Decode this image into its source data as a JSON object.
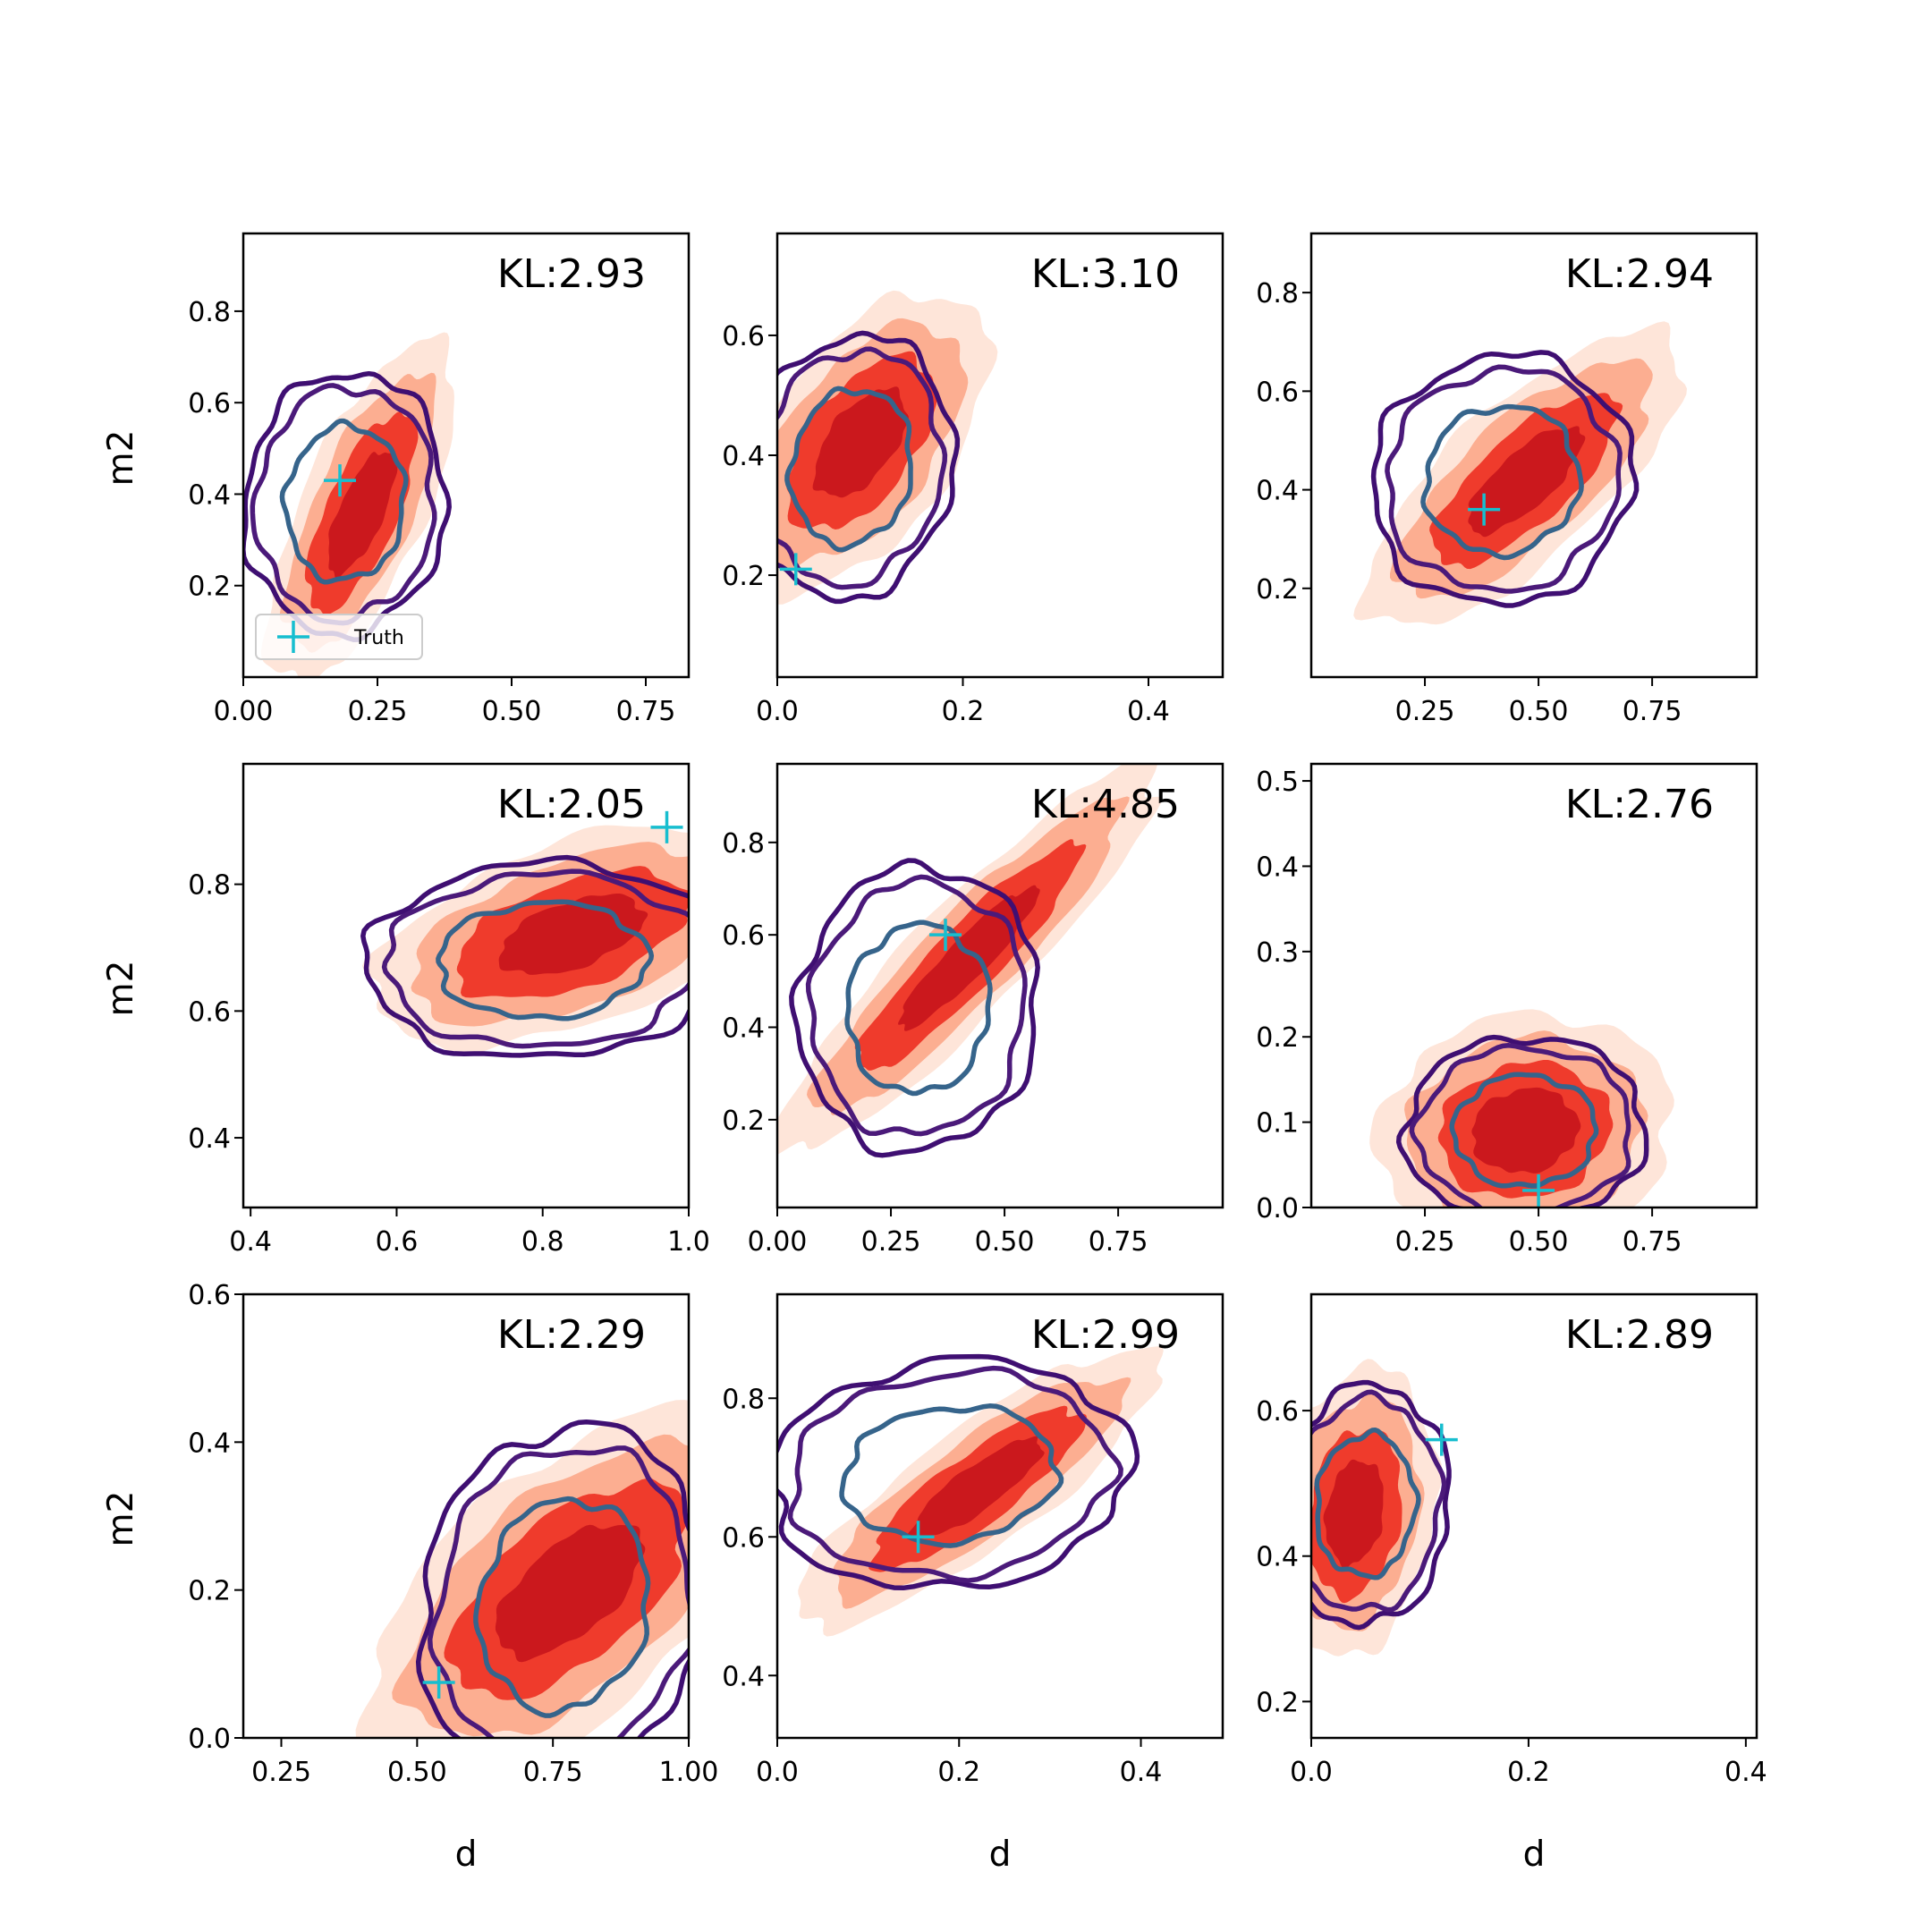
{
  "figure": {
    "legend_label": "Truth",
    "x_axis_label": "d",
    "y_axis_label": "m2"
  },
  "colors": {
    "filled_contours": [
      "#fee5d9",
      "#fcae91",
      "#ef3b2c",
      "#cb181d"
    ],
    "outer_contour": "#3f0f72",
    "mid_contour": "#4b1a7a",
    "inner_contour": "#36648b",
    "truth_marker": "#17becf"
  },
  "chart_data": [
    {
      "type": "contour",
      "row": 0,
      "col": 0,
      "kl": "KL:2.93",
      "xlim": [
        0,
        0.83
      ],
      "ylim": [
        0,
        0.97
      ],
      "xticks": [
        "0.00",
        "0.25",
        "0.50",
        "0.75"
      ],
      "xtick_values": [
        0,
        0.25,
        0.5,
        0.75
      ],
      "yticks": [
        "0.2",
        "0.4",
        "0.6",
        "0.8"
      ],
      "ytick_values": [
        0.2,
        0.4,
        0.6,
        0.8
      ],
      "truth": [
        0.18,
        0.43
      ],
      "red": {
        "cx": 0.22,
        "cy": 0.36,
        "sx": 0.07,
        "sy": 0.15,
        "rho": 0.7
      },
      "purple": {
        "cx": 0.19,
        "cy": 0.38,
        "sx": 0.085,
        "sy": 0.13,
        "rho": 0.05
      },
      "legend": true
    },
    {
      "type": "contour",
      "row": 0,
      "col": 1,
      "kl": "KL:3.10",
      "xlim": [
        0,
        0.48
      ],
      "ylim": [
        0.03,
        0.77
      ],
      "xticks": [
        "0.0",
        "0.2",
        "0.4"
      ],
      "xtick_values": [
        0,
        0.2,
        0.4
      ],
      "yticks": [
        "0.2",
        "0.4",
        "0.6"
      ],
      "ytick_values": [
        0.2,
        0.4,
        0.6
      ],
      "truth": [
        0.02,
        0.21
      ],
      "red": {
        "cx": 0.09,
        "cy": 0.42,
        "sx": 0.055,
        "sy": 0.1,
        "rho": 0.55
      },
      "purple": {
        "cx": 0.08,
        "cy": 0.38,
        "sx": 0.05,
        "sy": 0.1,
        "rho": 0.1
      },
      "legend": false
    },
    {
      "type": "contour",
      "row": 0,
      "col": 2,
      "kl": "KL:2.94",
      "xlim": [
        0.0,
        0.98
      ],
      "ylim": [
        0.02,
        0.92
      ],
      "xticks": [
        "0.25",
        "0.50",
        "0.75"
      ],
      "xtick_values": [
        0.25,
        0.5,
        0.75
      ],
      "yticks": [
        "0.2",
        "0.4",
        "0.6",
        "0.8"
      ],
      "ytick_values": [
        0.2,
        0.4,
        0.6,
        0.8
      ],
      "truth": [
        0.38,
        0.36
      ],
      "red": {
        "cx": 0.47,
        "cy": 0.42,
        "sx": 0.14,
        "sy": 0.12,
        "rho": 0.75
      },
      "purple": {
        "cx": 0.42,
        "cy": 0.42,
        "sx": 0.13,
        "sy": 0.115,
        "rho": 0.05
      },
      "legend": false
    },
    {
      "type": "contour",
      "row": 1,
      "col": 0,
      "kl": "KL:2.05",
      "xlim": [
        0.39,
        1.0
      ],
      "ylim": [
        0.29,
        0.99
      ],
      "xticks": [
        "0.4",
        "0.6",
        "0.8",
        "1.0"
      ],
      "xtick_values": [
        0.4,
        0.6,
        0.8,
        1.0
      ],
      "yticks": [
        "0.4",
        "0.6",
        "0.8"
      ],
      "ytick_values": [
        0.4,
        0.6,
        0.8
      ],
      "truth": [
        0.97,
        0.89
      ],
      "red": {
        "cx": 0.84,
        "cy": 0.72,
        "sx": 0.11,
        "sy": 0.07,
        "rho": 0.5
      },
      "purple": {
        "cx": 0.8,
        "cy": 0.68,
        "sx": 0.11,
        "sy": 0.07,
        "rho": 0.05
      },
      "legend": false
    },
    {
      "type": "contour",
      "row": 1,
      "col": 1,
      "kl": "KL:4.85",
      "xlim": [
        0,
        0.98
      ],
      "ylim": [
        0.01,
        0.97
      ],
      "xticks": [
        "0.00",
        "0.25",
        "0.50",
        "0.75"
      ],
      "xtick_values": [
        0,
        0.25,
        0.5,
        0.75
      ],
      "yticks": [
        "0.2",
        "0.4",
        "0.6",
        "0.8"
      ],
      "ytick_values": [
        0.2,
        0.4,
        0.6,
        0.8
      ],
      "truth": [
        0.37,
        0.6
      ],
      "red": {
        "cx": 0.42,
        "cy": 0.55,
        "sx": 0.17,
        "sy": 0.17,
        "rho": 0.92
      },
      "purple": {
        "cx": 0.31,
        "cy": 0.44,
        "sx": 0.12,
        "sy": 0.14,
        "rho": 0.05
      },
      "legend": false
    },
    {
      "type": "contour",
      "row": 1,
      "col": 2,
      "kl": "KL:2.76",
      "xlim": [
        0.0,
        0.98
      ],
      "ylim": [
        0.0,
        0.52
      ],
      "xticks": [
        "0.25",
        "0.50",
        "0.75"
      ],
      "xtick_values": [
        0.25,
        0.5,
        0.75
      ],
      "yticks": [
        "0.0",
        "0.1",
        "0.2",
        "0.3",
        "0.4",
        "0.5"
      ],
      "ytick_values": [
        0.0,
        0.1,
        0.2,
        0.3,
        0.4,
        0.5
      ],
      "truth": [
        0.5,
        0.02
      ],
      "red": {
        "cx": 0.47,
        "cy": 0.09,
        "sx": 0.13,
        "sy": 0.055,
        "rho": 0.1
      },
      "purple": {
        "cx": 0.47,
        "cy": 0.09,
        "sx": 0.12,
        "sy": 0.05,
        "rho": 0.02
      },
      "legend": false
    },
    {
      "type": "contour",
      "row": 2,
      "col": 0,
      "kl": "KL:2.29",
      "xlim": [
        0.18,
        1.0
      ],
      "ylim": [
        0.0,
        0.6
      ],
      "xticks": [
        "0.25",
        "0.50",
        "0.75",
        "1.00"
      ],
      "xtick_values": [
        0.25,
        0.5,
        0.75,
        1.0
      ],
      "yticks": [
        "0.0",
        "0.2",
        "0.4",
        "0.6"
      ],
      "ytick_values": [
        0.0,
        0.2,
        0.4,
        0.6
      ],
      "truth": [
        0.54,
        0.075
      ],
      "red": {
        "cx": 0.78,
        "cy": 0.2,
        "sx": 0.15,
        "sy": 0.1,
        "rho": 0.6
      },
      "purple": {
        "cx": 0.77,
        "cy": 0.18,
        "sx": 0.12,
        "sy": 0.11,
        "rho": 0.1
      },
      "legend": false
    },
    {
      "type": "contour",
      "row": 2,
      "col": 1,
      "kl": "KL:2.99",
      "xlim": [
        0,
        0.49
      ],
      "ylim": [
        0.31,
        0.95
      ],
      "xticks": [
        "0.0",
        "0.2",
        "0.4"
      ],
      "xtick_values": [
        0,
        0.2,
        0.4
      ],
      "yticks": [
        "0.4",
        "0.6",
        "0.8"
      ],
      "ytick_values": [
        0.4,
        0.6,
        0.8
      ],
      "truth": [
        0.155,
        0.6
      ],
      "red": {
        "cx": 0.22,
        "cy": 0.67,
        "sx": 0.08,
        "sy": 0.08,
        "rho": 0.85
      },
      "purple": {
        "cx": 0.19,
        "cy": 0.69,
        "sx": 0.09,
        "sy": 0.075,
        "rho": 0.1
      },
      "legend": false
    },
    {
      "type": "contour",
      "row": 2,
      "col": 2,
      "kl": "KL:2.89",
      "xlim": [
        0,
        0.41
      ],
      "ylim": [
        0.15,
        0.76
      ],
      "xticks": [
        "0.0",
        "0.2",
        "0.4"
      ],
      "xtick_values": [
        0,
        0.2,
        0.4
      ],
      "yticks": [
        "0.2",
        "0.4",
        "0.6"
      ],
      "ytick_values": [
        0.2,
        0.4,
        0.6
      ],
      "truth": [
        0.12,
        0.56
      ],
      "red": {
        "cx": 0.04,
        "cy": 0.46,
        "sx": 0.03,
        "sy": 0.08,
        "rho": 0.2
      },
      "purple": {
        "cx": 0.05,
        "cy": 0.47,
        "sx": 0.035,
        "sy": 0.075,
        "rho": 0.05
      },
      "legend": false
    }
  ]
}
